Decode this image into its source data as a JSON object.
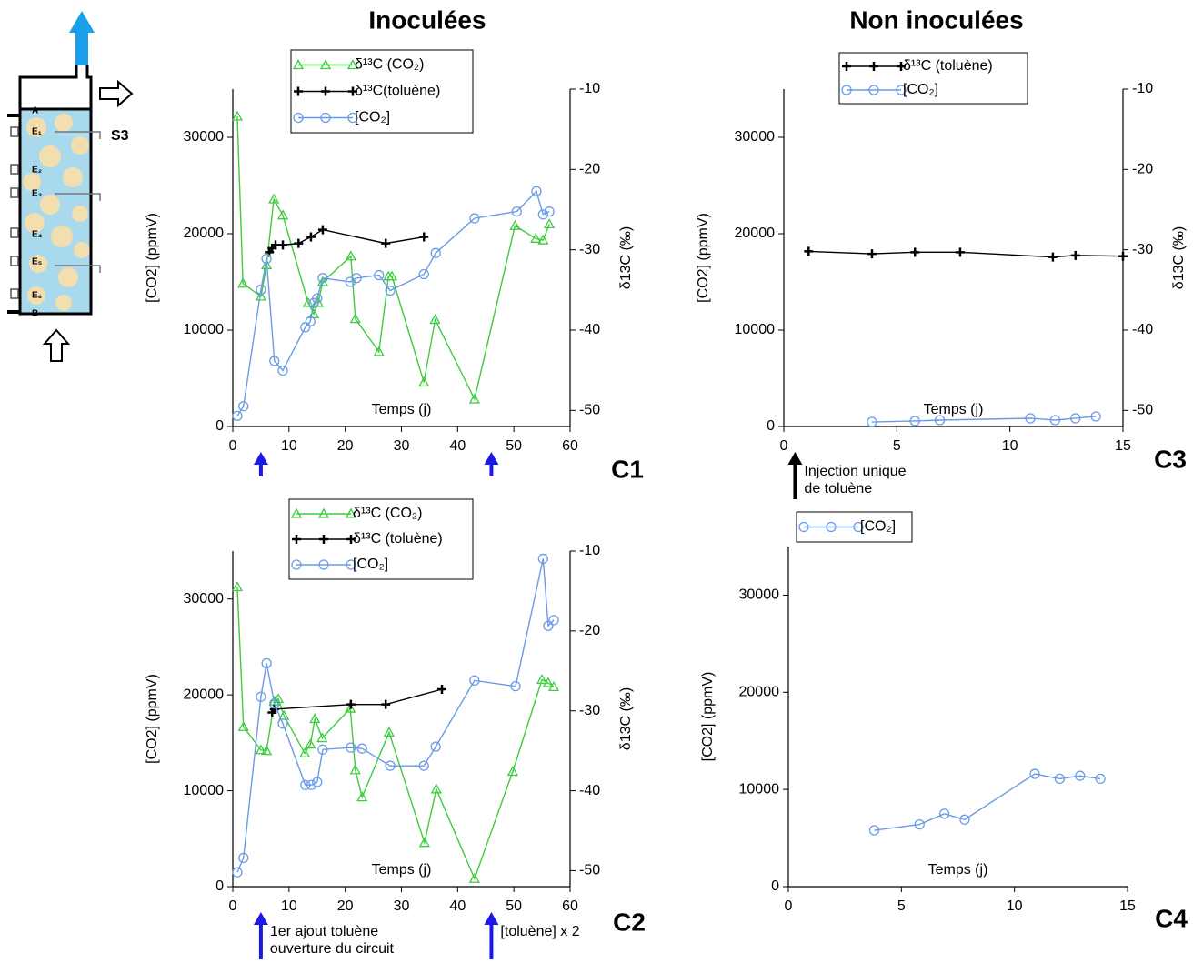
{
  "column_titles": [
    "Inoculées",
    "Non inoculées"
  ],
  "diagram": {
    "labels": [
      "A",
      "E₁",
      "E₂",
      "E₃",
      "E₄",
      "E₅",
      "E₆",
      "B"
    ],
    "outlet": "S3"
  },
  "chart_data": [
    {
      "type": "line",
      "label": "C1",
      "xlabel": "Temps (j)",
      "ylabel": "[CO2] (ppmV)",
      "y2label": "δ13C (‰)",
      "xlim": [
        0,
        60
      ],
      "xticks": [
        0,
        10,
        20,
        30,
        40,
        50,
        60
      ],
      "ylim": [
        0,
        35000
      ],
      "yticks": [
        0,
        10000,
        20000,
        30000
      ],
      "y2lim": [
        -52,
        -10
      ],
      "y2ticks": [
        -50,
        -40,
        -30,
        -20,
        -10
      ],
      "series": [
        {
          "name": "δ¹³C (CO₂)",
          "color": "#3ecb3e",
          "marker": "triangle",
          "axis": "y2",
          "x": [
            0.8,
            1.8,
            5,
            6,
            7.3,
            8.9,
            13.4,
            14.4,
            15.2,
            16,
            21,
            21.8,
            26,
            27.7,
            28.3,
            34,
            36,
            43,
            50.2,
            53.9,
            55.2,
            56.3
          ],
          "values": [
            -13.4,
            -34.2,
            -35.8,
            -31.9,
            -23.7,
            -25.7,
            -36.6,
            -38,
            -36.6,
            -34,
            -30.8,
            -38.6,
            -42.7,
            -33.3,
            -33.3,
            -46.5,
            -38.7,
            -48.6,
            -27,
            -28.6,
            -28.8,
            -26.8
          ]
        },
        {
          "name": "δ¹³C(toluène)",
          "color": "#000000",
          "marker": "plus",
          "axis": "y2",
          "x": [
            6.5,
            7,
            7.6,
            8.9,
            11.7,
            13.9,
            16,
            27.2,
            34
          ],
          "values": [
            -30.3,
            -29.8,
            -29.4,
            -29.4,
            -29.2,
            -28.4,
            -27.5,
            -29.2,
            -28.4
          ]
        },
        {
          "name": "[CO₂]",
          "color": "#6a9be8",
          "marker": "circle",
          "x": [
            0.8,
            1.9,
            5,
            6,
            7.4,
            8.9,
            12.9,
            13.8,
            14.4,
            15,
            16,
            20.9,
            22,
            26,
            28,
            34,
            36.1,
            43,
            50.5,
            54,
            55.2,
            56.3
          ],
          "values": [
            1100,
            2100,
            14200,
            17400,
            6800,
            5800,
            10300,
            10900,
            12800,
            13300,
            15400,
            15000,
            15400,
            15700,
            14100,
            15800,
            18000,
            21600,
            22300,
            24400,
            22000,
            22300
          ]
        }
      ],
      "annotations": [
        {
          "x": 5,
          "color": "#1a1ae6"
        },
        {
          "x": 46,
          "color": "#1a1ae6"
        }
      ]
    },
    {
      "type": "line",
      "label": "C2",
      "xlabel": "Temps (j)",
      "ylabel": "[CO2] (ppmV)",
      "y2label": "δ13C (‰)",
      "xlim": [
        0,
        60
      ],
      "xticks": [
        0,
        10,
        20,
        30,
        40,
        50,
        60
      ],
      "ylim": [
        0,
        35000
      ],
      "yticks": [
        0,
        10000,
        20000,
        30000
      ],
      "y2lim": [
        -52,
        -10
      ],
      "y2ticks": [
        -50,
        -40,
        -30,
        -20,
        -10
      ],
      "series": [
        {
          "name": "δ¹³C (CO₂)",
          "color": "#3ecb3e",
          "marker": "triangle",
          "axis": "y2",
          "x": [
            0.8,
            1.9,
            5,
            6,
            7.4,
            8.1,
            9.1,
            12.8,
            13.8,
            14.6,
            15.9,
            20.9,
            21.8,
            23,
            27.8,
            34.1,
            36.2,
            43,
            49.8,
            55,
            56.1,
            57.1
          ],
          "values": [
            -14.5,
            -32,
            -34.9,
            -35,
            -28.8,
            -28.5,
            -30.6,
            -35.3,
            -34.2,
            -31,
            -33.4,
            -29.7,
            -37.4,
            -40.8,
            -32.7,
            -46.5,
            -39.8,
            -51,
            -37.6,
            -26.1,
            -26.5,
            -27
          ]
        },
        {
          "name": "δ¹³C (toluène)",
          "color": "#000000",
          "marker": "plus",
          "axis": "y2",
          "x": [
            7,
            7.4,
            21,
            27.2,
            37.2
          ],
          "values": [
            -30.2,
            -29.8,
            -29.2,
            -29.2,
            -27.3
          ]
        },
        {
          "name": "[CO₂]",
          "color": "#6a9be8",
          "marker": "circle",
          "x": [
            0.8,
            1.9,
            5,
            6,
            7.4,
            8.9,
            12.9,
            14,
            15,
            16,
            21,
            23,
            28,
            34,
            36.1,
            43,
            50.3,
            55.2,
            56.1,
            57.1
          ],
          "values": [
            1500,
            3000,
            19800,
            23300,
            19100,
            17000,
            10600,
            10600,
            10900,
            14300,
            14500,
            14400,
            12600,
            12600,
            14600,
            21500,
            20900,
            34200,
            27200,
            27800
          ]
        }
      ],
      "annotations": [
        {
          "x": 5,
          "color": "#1a1ae6",
          "text": [
            "1er ajout toluène",
            "ouverture du circuit"
          ]
        },
        {
          "x": 46,
          "color": "#1a1ae6",
          "text": [
            "[toluène] x 2"
          ]
        }
      ]
    },
    {
      "type": "line",
      "label": "C3",
      "xlabel": "Temps (j)",
      "ylabel": "[CO2] (ppmV)",
      "y2label": "δ13C (‰)",
      "xlim": [
        0,
        15
      ],
      "xticks": [
        0,
        5,
        10,
        15
      ],
      "ylim": [
        0,
        35000
      ],
      "yticks": [
        0,
        10000,
        20000,
        30000
      ],
      "y2lim": [
        -52,
        -10
      ],
      "y2ticks": [
        -50,
        -40,
        -30,
        -20,
        -10
      ],
      "series": [
        {
          "name": "δ¹³C (toluène)",
          "color": "#000000",
          "marker": "plus",
          "axis": "y2",
          "x": [
            1.1,
            3.9,
            5.8,
            7.8,
            11.9,
            12.9,
            15
          ],
          "values": [
            -30.2,
            -30.5,
            -30.3,
            -30.3,
            -30.9,
            -30.7,
            -30.8
          ]
        },
        {
          "name": "[CO₂]",
          "color": "#6a9be8",
          "marker": "circle",
          "x": [
            3.9,
            5.8,
            6.9,
            10.9,
            12,
            12.9,
            13.8
          ],
          "values": [
            470,
            570,
            660,
            850,
            660,
            850,
            1040
          ]
        }
      ],
      "annotations": [
        {
          "x": 0.5,
          "color": "#000000",
          "text": [
            "Injection unique",
            "de toluène"
          ]
        }
      ]
    },
    {
      "type": "line",
      "label": "C4",
      "xlabel": "Temps (j)",
      "ylabel": "[CO2] (ppmV)",
      "xlim": [
        0,
        15
      ],
      "xticks": [
        0,
        5,
        10,
        15
      ],
      "ylim": [
        0,
        35000
      ],
      "yticks": [
        0,
        10000,
        20000,
        30000
      ],
      "series": [
        {
          "name": "[CO₂]",
          "color": "#6a9be8",
          "marker": "circle",
          "x": [
            3.8,
            5.8,
            6.9,
            7.8,
            10.9,
            12,
            12.9,
            13.8
          ],
          "values": [
            5800,
            6400,
            7500,
            6900,
            11600,
            11100,
            11400,
            11100
          ]
        }
      ]
    }
  ]
}
